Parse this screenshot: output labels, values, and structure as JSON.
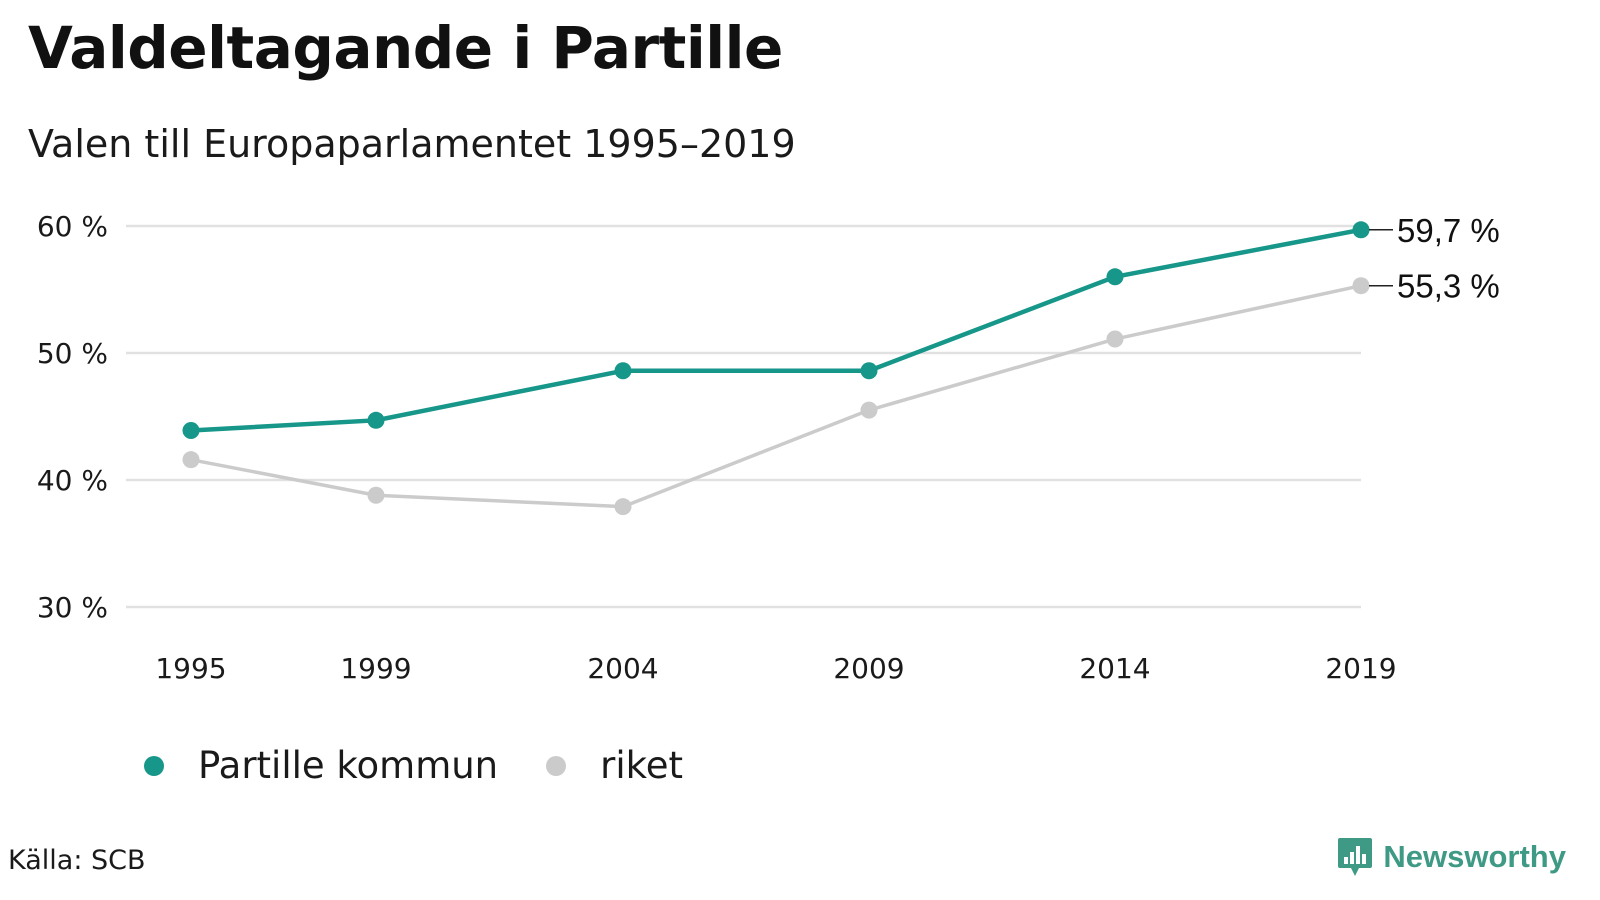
{
  "title": "Valdeltagande i Partille",
  "subtitle": "Valen till Europaparlamentet 1995–2019",
  "source": "Källa: SCB",
  "brand": {
    "name": "Newsworthy",
    "icon": "newsworthy-logo-icon",
    "color": "#3f9a85"
  },
  "colors": {
    "partille": "#17968a",
    "riket": "#cbcbcb",
    "grid": "#e1e1e1"
  },
  "chart_data": {
    "type": "line",
    "title": "Valdeltagande i Partille",
    "subtitle": "Valen till Europaparlamentet 1995–2019",
    "x": [
      "1995",
      "1999",
      "2004",
      "2009",
      "2014",
      "2019"
    ],
    "x_numeric": [
      1995,
      1999,
      2004,
      2009,
      2014,
      2019
    ],
    "ylim": [
      30,
      60
    ],
    "yticks": [
      30,
      40,
      50,
      60
    ],
    "ytick_labels": [
      "30 %",
      "40 %",
      "50 %",
      "60 %"
    ],
    "grid": true,
    "legend_position": "bottom-left",
    "series": [
      {
        "name": "Partille kommun",
        "color": "#17968a",
        "values": [
          43.9,
          44.7,
          48.6,
          48.6,
          56.0,
          59.7
        ],
        "end_label": "59,7 %"
      },
      {
        "name": "riket",
        "color": "#cbcbcb",
        "values": [
          41.6,
          38.8,
          37.9,
          45.5,
          51.1,
          55.3
        ],
        "end_label": "55,3 %"
      }
    ]
  }
}
